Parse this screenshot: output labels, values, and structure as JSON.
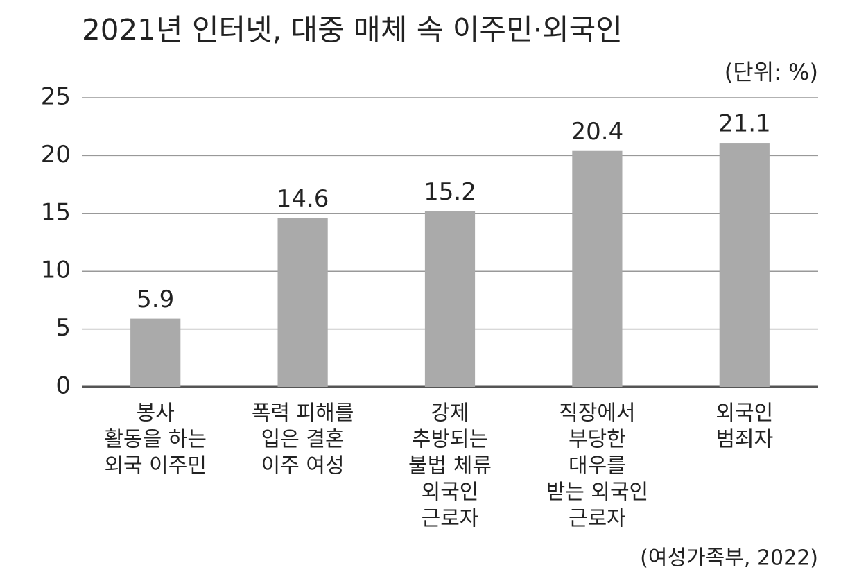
{
  "chart_data": {
    "type": "bar",
    "title": "2021년 인터넷, 대중 매체 속 이주민·외국인",
    "unit": "(단위: %)",
    "source": "(여성가족부, 2022)",
    "categories": [
      [
        "봉사",
        "활동을 하는",
        "외국 이주민"
      ],
      [
        "폭력 피해를",
        "입은 결혼",
        "이주 여성"
      ],
      [
        "강제",
        "추방되는",
        "불법 체류",
        "외국인",
        "근로자"
      ],
      [
        "직장에서",
        "부당한",
        "대우를",
        "받는 외국인",
        "근로자"
      ],
      [
        "외국인",
        "범죄자"
      ]
    ],
    "values": [
      5.9,
      14.6,
      15.2,
      20.4,
      21.1
    ],
    "color": "#aaaaaa",
    "ylim": [
      0,
      25
    ],
    "yticks": [
      0,
      5,
      10,
      15,
      20,
      25
    ],
    "grid": true
  }
}
